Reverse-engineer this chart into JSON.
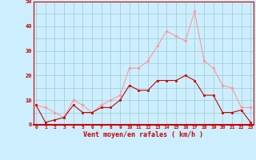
{
  "x": [
    0,
    1,
    2,
    3,
    4,
    5,
    6,
    7,
    8,
    9,
    10,
    11,
    12,
    13,
    14,
    15,
    16,
    17,
    18,
    19,
    20,
    21,
    22,
    23
  ],
  "mean_wind": [
    8,
    1,
    2,
    3,
    8,
    5,
    5,
    7,
    7,
    10,
    16,
    14,
    14,
    18,
    18,
    18,
    20,
    18,
    12,
    12,
    5,
    5,
    6,
    1
  ],
  "gust_wind": [
    8,
    7,
    5,
    3,
    10,
    8,
    5,
    8,
    10,
    12,
    23,
    23,
    26,
    32,
    38,
    36,
    34,
    46,
    26,
    23,
    16,
    15,
    7,
    7
  ],
  "mean_color": "#cc0000",
  "gust_color": "#ff9999",
  "bg_color": "#cceeff",
  "grid_color": "#99cccc",
  "xlabel": "Vent moyen/en rafales ( km/h )",
  "xlabel_color": "#cc0000",
  "tick_color": "#cc0000",
  "spine_color": "#cc0000",
  "ylim": [
    0,
    50
  ],
  "yticks": [
    0,
    5,
    10,
    15,
    20,
    25,
    30,
    35,
    40,
    45,
    50
  ],
  "ytick_labels": [
    "0",
    "",
    "10",
    "",
    "20",
    "",
    "30",
    "",
    "40",
    "",
    "50"
  ],
  "xticks": [
    0,
    1,
    2,
    3,
    4,
    5,
    6,
    7,
    8,
    9,
    10,
    11,
    12,
    13,
    14,
    15,
    16,
    17,
    18,
    19,
    20,
    21,
    22,
    23
  ]
}
